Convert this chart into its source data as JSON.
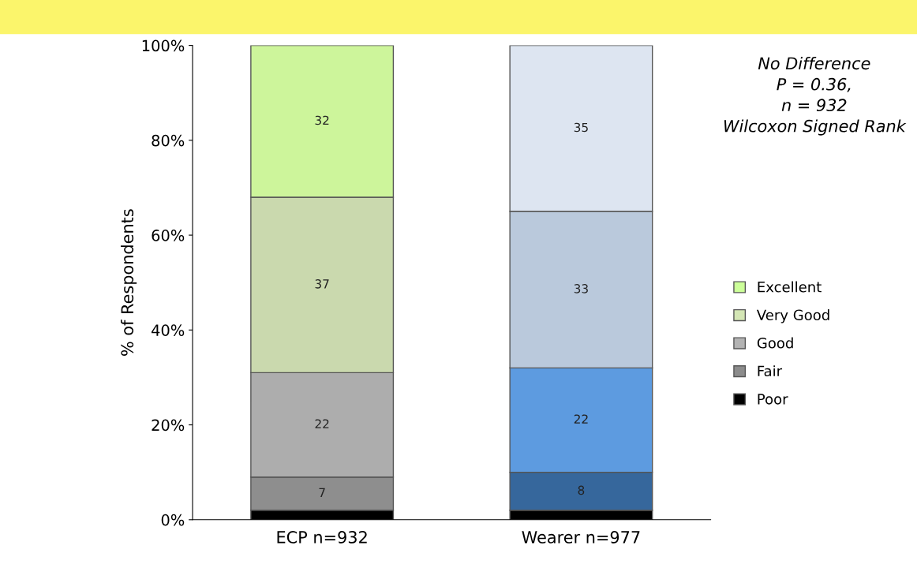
{
  "chart_data": {
    "type": "bar",
    "stacked": true,
    "ylabel": "% of Respondents",
    "categories": [
      "ECP n=932",
      "Wearer n=977"
    ],
    "series": [
      {
        "name": "Poor",
        "color": "#000000",
        "colors": [
          "#000000",
          "#000000"
        ],
        "values": [
          2,
          2
        ],
        "value_labels": [
          null,
          null
        ]
      },
      {
        "name": "Fair",
        "color": "#8c8c8c",
        "colors": [
          "#8e8e8e",
          "#36679c"
        ],
        "values": [
          7,
          8
        ],
        "value_labels": [
          "7",
          "8"
        ]
      },
      {
        "name": "Good",
        "color": "#b3b3b3",
        "colors": [
          "#adadad",
          "#5d9be0"
        ],
        "values": [
          22,
          22
        ],
        "value_labels": [
          "22",
          "22"
        ]
      },
      {
        "name": "Very Good",
        "color": "#d4e6b5",
        "colors": [
          "#cad9ae",
          "#bac9dc"
        ],
        "values": [
          37,
          33
        ],
        "value_labels": [
          "37",
          "33"
        ]
      },
      {
        "name": "Excellent",
        "color": "#ccff99",
        "colors": [
          "#cdf59b",
          "#dde5f1"
        ],
        "values": [
          32,
          35
        ],
        "value_labels": [
          "32",
          "35"
        ]
      }
    ],
    "ylim": [
      0,
      100
    ],
    "yticks": [
      {
        "value": 0,
        "label": "0%"
      },
      {
        "value": 20,
        "label": "20%"
      },
      {
        "value": 40,
        "label": "40%"
      },
      {
        "value": 60,
        "label": "60%"
      },
      {
        "value": 80,
        "label": "80%"
      },
      {
        "value": 100,
        "label": "100%"
      }
    ],
    "annotations": [
      "No Difference\nP = 0.36,\nn = 932\nWilcoxon Signed Rank"
    ],
    "legend": "right",
    "grid": false
  }
}
